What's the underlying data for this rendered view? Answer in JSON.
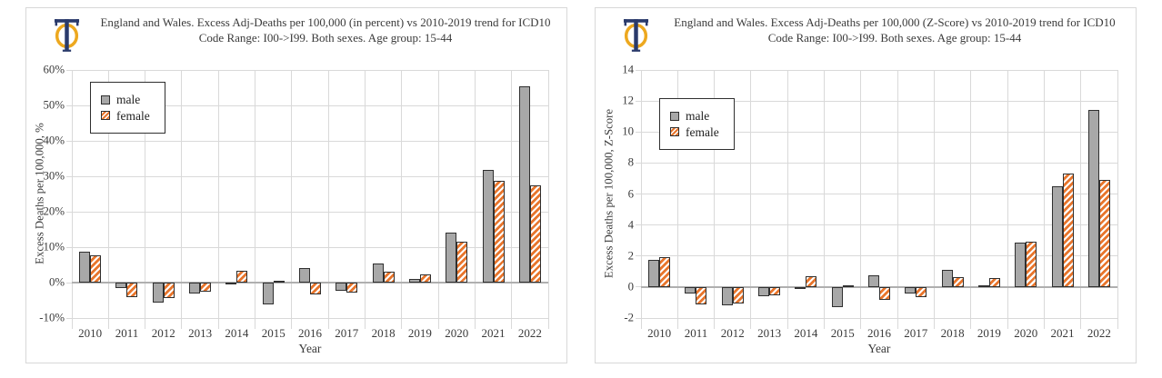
{
  "page": {
    "background": "#ffffff"
  },
  "colors": {
    "male_fill": "#A8A8A8",
    "female_stripe": "#E8752C",
    "bar_border": "#2F2F2F",
    "gridline": "#D9D9D9",
    "zero_line": "#AFAFAF",
    "text": "#3A3A3A",
    "panel_border": "#D8D8D8",
    "logo_gold": "#EDA81F",
    "logo_navy": "#2A3A6B"
  },
  "logo": {
    "icon": "phi-logo"
  },
  "legend": {
    "items": [
      "male",
      "female"
    ],
    "position": "top-left"
  },
  "chart_data": [
    {
      "type": "bar",
      "title": "England and Wales. Excess Adj-Deaths per 100,000 (in percent) vs 2010-2019 trend for ICD10 Code Range: I00->I99. Both sexes. Age group: 15-44",
      "xlabel": "Year",
      "ylabel": "Excess Deaths per 100,000, %",
      "categories": [
        "2010",
        "2011",
        "2012",
        "2013",
        "2014",
        "2015",
        "2016",
        "2017",
        "2018",
        "2019",
        "2020",
        "2021",
        "2022"
      ],
      "series": [
        {
          "name": "male",
          "values": [
            8.8,
            -1.6,
            -5.7,
            -3.1,
            -0.6,
            -6.2,
            4.2,
            -2.2,
            5.5,
            0.9,
            14.1,
            31.8,
            55.5
          ]
        },
        {
          "name": "female",
          "values": [
            7.7,
            -4.2,
            -4.3,
            -2.5,
            3.3,
            0.6,
            -3.4,
            -2.8,
            3.1,
            2.3,
            11.5,
            28.8,
            27.5
          ]
        }
      ],
      "ylim": [
        -10,
        60
      ],
      "y_step": 10,
      "tick_suffix": "%",
      "grid": true,
      "legend_position": "top-left"
    },
    {
      "type": "bar",
      "title": "England and Wales. Excess Adj-Deaths per 100,000 (Z-Score) vs 2010-2019 trend for ICD10 Code Range: I00->I99. Both sexes. Age group: 15-44",
      "xlabel": "Year",
      "ylabel": "Excess Deaths per 100,000, Z-Score",
      "categories": [
        "2010",
        "2011",
        "2012",
        "2013",
        "2014",
        "2015",
        "2016",
        "2017",
        "2018",
        "2019",
        "2020",
        "2021",
        "2022"
      ],
      "series": [
        {
          "name": "male",
          "values": [
            1.75,
            -0.4,
            -1.2,
            -0.6,
            -0.15,
            -1.3,
            0.75,
            -0.4,
            1.1,
            0.1,
            2.85,
            6.5,
            11.4
          ]
        },
        {
          "name": "female",
          "values": [
            1.9,
            -1.1,
            -1.05,
            -0.55,
            0.7,
            0.1,
            -0.85,
            -0.65,
            0.65,
            0.55,
            2.9,
            7.3,
            6.9
          ]
        }
      ],
      "ylim": [
        -2,
        14
      ],
      "y_step": 2,
      "tick_suffix": "",
      "grid": true,
      "legend_position": "top-left"
    }
  ]
}
